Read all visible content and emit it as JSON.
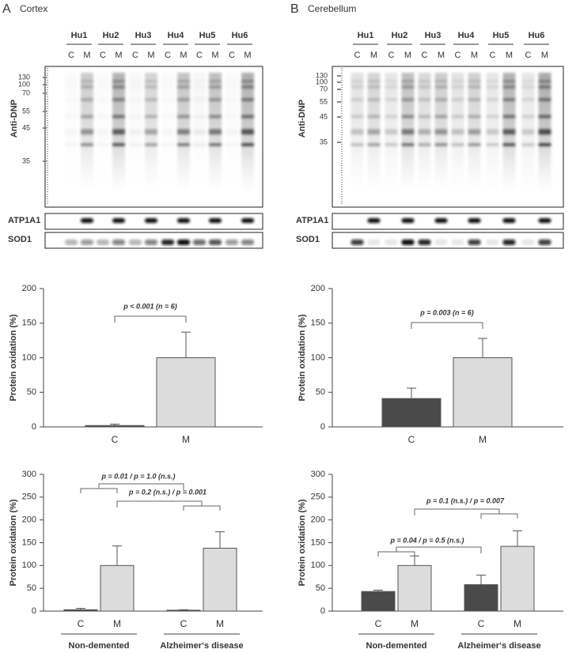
{
  "panels": [
    {
      "letter": "A",
      "region": "Cortex",
      "lanes": [
        "Hu1",
        "Hu2",
        "Hu3",
        "Hu4",
        "Hu5",
        "Hu6"
      ],
      "conditions": [
        "C",
        "M"
      ],
      "markers": [
        "130",
        "100",
        "70",
        "55",
        "45",
        "35"
      ],
      "blot_label": "Anti-DNP",
      "loading": [
        "ATP1A1",
        "SOD1"
      ]
    },
    {
      "letter": "B",
      "region": "Cerebellum",
      "lanes": [
        "Hu1",
        "Hu2",
        "Hu3",
        "Hu4",
        "Hu5",
        "Hu6"
      ],
      "conditions": [
        "C",
        "M"
      ],
      "markers": [
        "130",
        "100",
        "70",
        "55",
        "45",
        "35"
      ],
      "blot_label": "Anti-DNP",
      "loading": [
        "ATP1A1",
        "SOD1"
      ]
    }
  ],
  "chart_data": [
    {
      "type": "bar",
      "categories": [
        "C",
        "M"
      ],
      "values": [
        2,
        100
      ],
      "errors": [
        2,
        37
      ],
      "colors": [
        "#4a4a4a",
        "#dcdcdc"
      ],
      "y_label": "Protein oxidation (%)",
      "ylim": [
        0,
        200
      ],
      "yticks": [
        0,
        50,
        100,
        150,
        200
      ],
      "annotations": [
        "p < 0.001 (n = 6)"
      ]
    },
    {
      "type": "bar",
      "categories": [
        "C",
        "M"
      ],
      "values": [
        41,
        100
      ],
      "errors": [
        15,
        28
      ],
      "colors": [
        "#4a4a4a",
        "#dcdcdc"
      ],
      "y_label": "Protein oxidation (%)",
      "ylim": [
        0,
        200
      ],
      "yticks": [
        0,
        50,
        100,
        150,
        200
      ],
      "annotations": [
        "p = 0.003 (n = 6)"
      ]
    },
    {
      "type": "grouped_bar",
      "groups": [
        "Non-demented",
        "Alzheimer‘s disease"
      ],
      "series": [
        {
          "name": "C",
          "color": "#4a4a4a",
          "values": [
            3,
            2
          ],
          "errors": [
            3,
            1
          ]
        },
        {
          "name": "M",
          "color": "#dcdcdc",
          "values": [
            100,
            138
          ],
          "errors": [
            43,
            36
          ]
        }
      ],
      "y_label": "Protein oxidation (%)",
      "ylim": [
        0,
        300
      ],
      "yticks": [
        0,
        50,
        100,
        150,
        200,
        250,
        300
      ],
      "annotations": [
        "p = 0.01 / p = 1.0 (n.s.)",
        "p = 0.2 (n.s.) / p = 0.001"
      ]
    },
    {
      "type": "grouped_bar",
      "groups": [
        "Non-demented",
        "Alzheimer‘s disease"
      ],
      "series": [
        {
          "name": "C",
          "color": "#4a4a4a",
          "values": [
            43,
            58
          ],
          "errors": [
            3,
            21
          ]
        },
        {
          "name": "M",
          "color": "#dcdcdc",
          "values": [
            100,
            142
          ],
          "errors": [
            21,
            34
          ]
        }
      ],
      "y_label": "Protein oxidation (%)",
      "ylim": [
        0,
        300
      ],
      "yticks": [
        0,
        50,
        100,
        150,
        200,
        250,
        300
      ],
      "annotations": [
        "p = 0.04 / p = 0.5 (n.s.)",
        "p = 0.1 (n.s.) / p = 0.007"
      ]
    }
  ]
}
